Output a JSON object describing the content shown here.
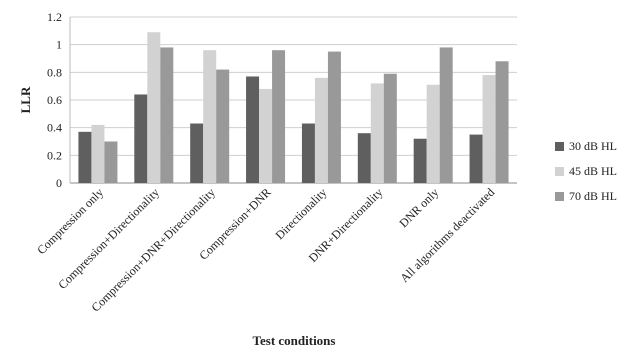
{
  "chart_data": {
    "type": "bar",
    "title": "",
    "xlabel": "Test conditions",
    "ylabel": "LLR",
    "ylim": [
      0,
      1.2
    ],
    "yticks": [
      "0",
      "0.2",
      "0.4",
      "0.6",
      "0.8",
      "1",
      "1.2"
    ],
    "grid": true,
    "legend_position": "right",
    "categories": [
      "Compression only",
      "Compression+Directionality",
      "Compression+DNR+Directionality",
      "Compression+DNR",
      "Directionality",
      "DNR+Directionality",
      "DNR only",
      "All algorithms deactivated"
    ],
    "series": [
      {
        "name": "30 dB HL",
        "color": "#5f5f5f",
        "values": [
          0.37,
          0.64,
          0.43,
          0.77,
          0.43,
          0.36,
          0.32,
          0.35
        ]
      },
      {
        "name": "45 dB HL",
        "color": "#d2d2d2",
        "values": [
          0.42,
          1.09,
          0.96,
          0.68,
          0.76,
          0.72,
          0.71,
          0.78
        ]
      },
      {
        "name": "70 dB HL",
        "color": "#999999",
        "values": [
          0.3,
          0.98,
          0.82,
          0.96,
          0.95,
          0.79,
          0.98,
          0.88
        ]
      }
    ]
  }
}
